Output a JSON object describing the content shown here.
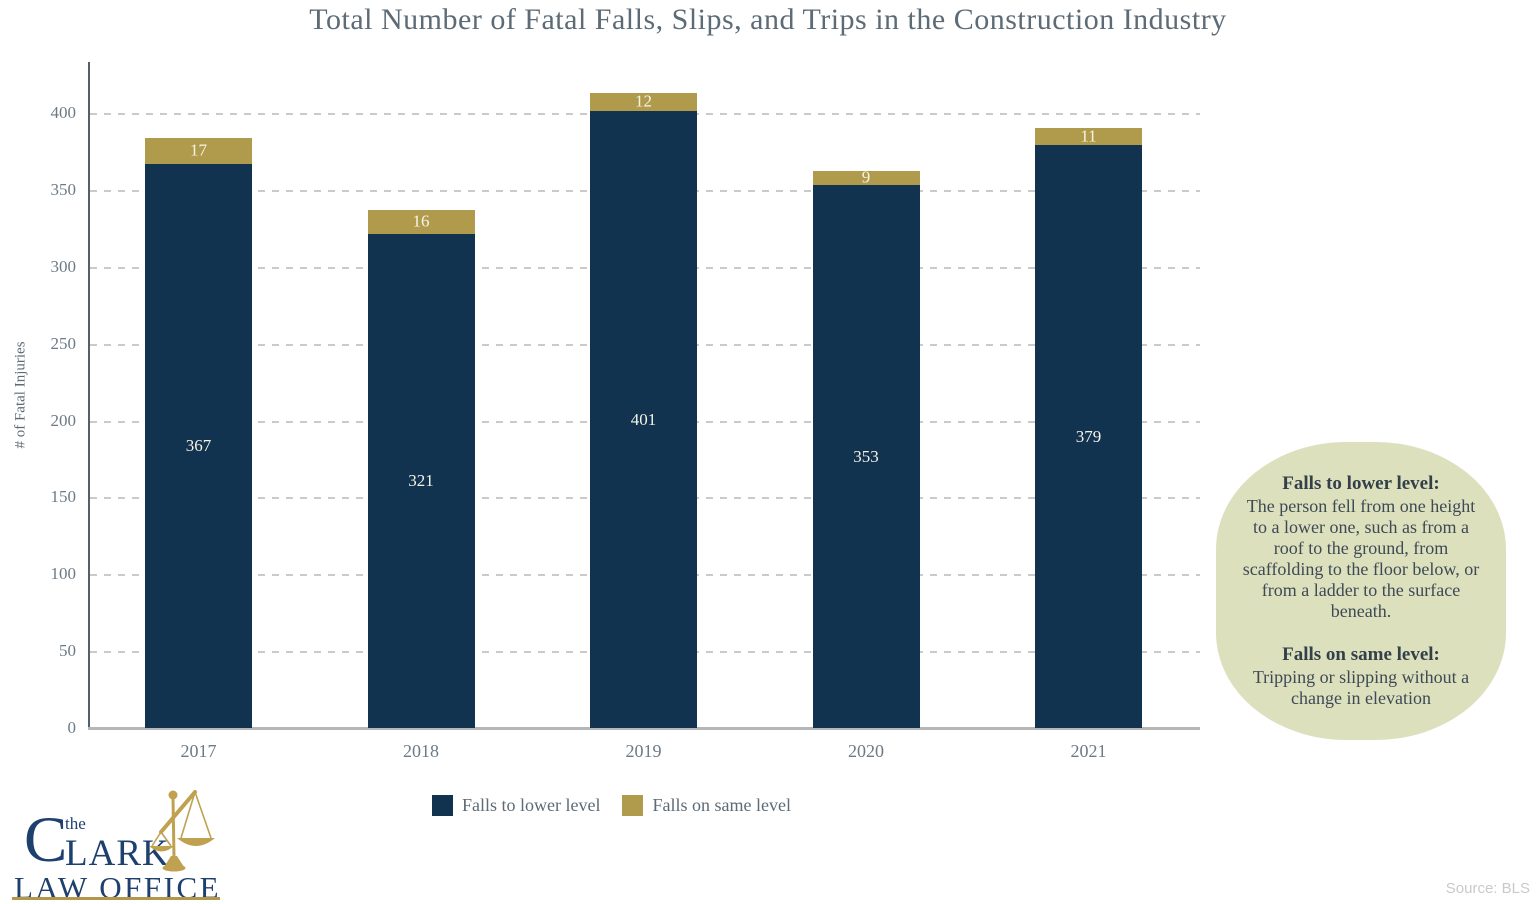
{
  "title": "Total Number of Fatal Falls, Slips, and Trips in the Construction Industry",
  "chart_data": {
    "type": "bar",
    "stacked": true,
    "categories": [
      "2017",
      "2018",
      "2019",
      "2020",
      "2021"
    ],
    "series": [
      {
        "name": "Falls to lower level",
        "color": "#123350",
        "values": [
          367,
          321,
          401,
          353,
          379
        ]
      },
      {
        "name": "Falls on same level",
        "color": "#b09b4c",
        "values": [
          17,
          16,
          12,
          9,
          11
        ]
      }
    ],
    "title": "Total Number of Fatal Falls, Slips, and Trips in the Construction Industry",
    "xlabel": "",
    "ylabel": "# of Fatal Injuries",
    "yticks": [
      0,
      50,
      100,
      150,
      200,
      250,
      300,
      350,
      400
    ],
    "ylim": [
      0,
      434
    ],
    "grid": "horizontal-dashed",
    "legend_position": "bottom"
  },
  "annotation": {
    "background": "#dde0bd",
    "sections": [
      {
        "heading": "Falls to lower level:",
        "body": "The person fell from one height to a lower one, such as from a roof to the ground, from scaffolding to the floor below, or from a ladder to the surface beneath."
      },
      {
        "heading": "Falls on same level:",
        "body": "Tripping or slipping without a change in elevation"
      }
    ]
  },
  "logo": {
    "prefix": "the",
    "initial": "C",
    "rest": "LARK",
    "subtitle": "LAW OFFICE",
    "icon": "scales-of-justice",
    "navy": "#1e406f",
    "gold": "#bfa14f"
  },
  "source": "Source: BLS",
  "colors": {
    "bar_navy": "#123350",
    "bar_gold": "#b09b4c",
    "annotation_bg": "#dde0bd",
    "text_gray": "#5d6b76",
    "bar_label": "#f6f3e7"
  }
}
